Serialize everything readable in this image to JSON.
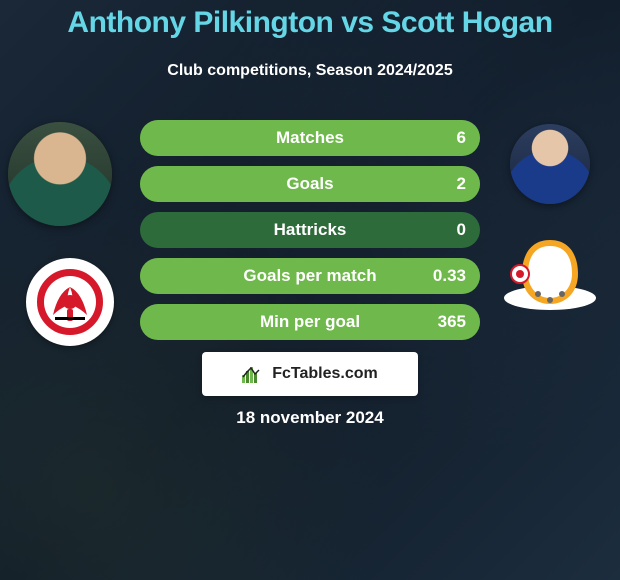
{
  "title": {
    "text": "Anthony Pilkington vs Scott Hogan",
    "color": "#64d6e6",
    "fontsize": 30
  },
  "subtitle": {
    "text": "Club competitions, Season 2024/2025",
    "color": "#ffffff",
    "fontsize": 16
  },
  "bars": {
    "track_color": "#2e6b3a",
    "fill_color": "#6fb84b",
    "label_color": "#ffffff",
    "value_color": "#ffffff",
    "label_fontsize": 17,
    "value_fontsize": 17,
    "height": 36,
    "radius": 18,
    "items": [
      {
        "label": "Matches",
        "value": "6",
        "fill_pct": 100
      },
      {
        "label": "Goals",
        "value": "2",
        "fill_pct": 100
      },
      {
        "label": "Hattricks",
        "value": "0",
        "fill_pct": 0
      },
      {
        "label": "Goals per match",
        "value": "0.33",
        "fill_pct": 100
      },
      {
        "label": "Min per goal",
        "value": "365",
        "fill_pct": 100
      }
    ]
  },
  "footer": {
    "brand": "FcTables.com",
    "brand_color": "#222222",
    "brand_fontsize": 16,
    "date": "18 november 2024",
    "date_color": "#ffffff",
    "date_fontsize": 17
  },
  "clubs": {
    "left": {
      "name": "fleetwood-town",
      "primary": "#d6192a",
      "secondary": "#ffffff",
      "accent": "#000000"
    },
    "right": {
      "name": "mk-dons",
      "primary": "#f5a623",
      "secondary": "#ffffff",
      "accent": "#d6192a"
    }
  },
  "background": "#14202e"
}
